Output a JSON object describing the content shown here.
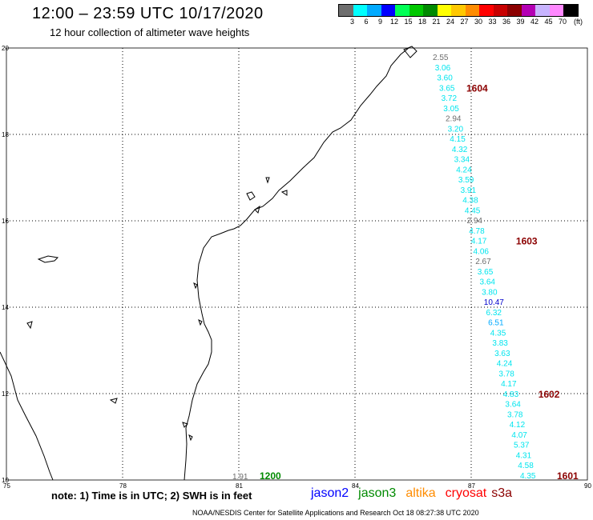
{
  "title": "12:00 – 23:59 UTC 10/17/2020",
  "subtitle": "12 hour collection of altimeter wave heights",
  "legend": {
    "unit": "(ft)",
    "swatches": [
      "#6e6e6e",
      "#00ffff",
      "#00aaff",
      "#0000ff",
      "#00ff55",
      "#00c800",
      "#008a00",
      "#ffff00",
      "#ffc800",
      "#ff8c00",
      "#ff0000",
      "#c80000",
      "#8b0000",
      "#b400b4",
      "#c8b4ff",
      "#ff88ff",
      "#000000"
    ],
    "labels": [
      "3",
      "6",
      "9",
      "12",
      "15",
      "18",
      "21",
      "24",
      "27",
      "30",
      "33",
      "36",
      "39",
      "42",
      "45",
      "70"
    ]
  },
  "axes": {
    "lat_labels": [
      "20",
      "18",
      "16",
      "14",
      "12",
      "10"
    ],
    "lon_labels": [
      "75",
      "78",
      "81",
      "84",
      "87",
      "90"
    ]
  },
  "wave_heights": [
    {
      "v": "2.55",
      "c": "#6e6e6e"
    },
    {
      "v": "3.06",
      "c": "#00e5ee"
    },
    {
      "v": "3.60",
      "c": "#00e5ee"
    },
    {
      "v": "3.65",
      "c": "#00e5ee"
    },
    {
      "v": "3.72",
      "c": "#00e5ee"
    },
    {
      "v": "3.05",
      "c": "#00e5ee"
    },
    {
      "v": "2.94",
      "c": "#6e6e6e"
    },
    {
      "v": "3.20",
      "c": "#00e5ee"
    },
    {
      "v": "4.15",
      "c": "#00e5ee"
    },
    {
      "v": "4.32",
      "c": "#00e5ee"
    },
    {
      "v": "3.34",
      "c": "#00e5ee"
    },
    {
      "v": "4.24",
      "c": "#00e5ee"
    },
    {
      "v": "3.59",
      "c": "#00e5ee"
    },
    {
      "v": "3.91",
      "c": "#00e5ee"
    },
    {
      "v": "4.38",
      "c": "#00e5ee"
    },
    {
      "v": "4.45",
      "c": "#00e5ee"
    },
    {
      "v": "2.94",
      "c": "#6e6e6e"
    },
    {
      "v": "4.78",
      "c": "#00e5ee"
    },
    {
      "v": "4.17",
      "c": "#00e5ee"
    },
    {
      "v": "4.06",
      "c": "#00e5ee"
    },
    {
      "v": "2.67",
      "c": "#6e6e6e"
    },
    {
      "v": "3.65",
      "c": "#00e5ee"
    },
    {
      "v": "3.64",
      "c": "#00e5ee"
    },
    {
      "v": "3.80",
      "c": "#00e5ee"
    },
    {
      "v": "10.47",
      "c": "#0000cc"
    },
    {
      "v": "6.32",
      "c": "#00e5ee"
    },
    {
      "v": "6.51",
      "c": "#00aaff"
    },
    {
      "v": "4.35",
      "c": "#00e5ee"
    },
    {
      "v": "3.83",
      "c": "#00e5ee"
    },
    {
      "v": "3.63",
      "c": "#00e5ee"
    },
    {
      "v": "4.24",
      "c": "#00e5ee"
    },
    {
      "v": "3.78",
      "c": "#00e5ee"
    },
    {
      "v": "4.17",
      "c": "#00e5ee"
    },
    {
      "v": "4.83",
      "c": "#00e5ee"
    },
    {
      "v": "3.64",
      "c": "#00e5ee"
    },
    {
      "v": "3.78",
      "c": "#00e5ee"
    },
    {
      "v": "4.12",
      "c": "#00e5ee"
    },
    {
      "v": "4.07",
      "c": "#00e5ee"
    },
    {
      "v": "5.37",
      "c": "#00e5ee"
    },
    {
      "v": "4.31",
      "c": "#00e5ee"
    },
    {
      "v": "4.58",
      "c": "#00e5ee"
    },
    {
      "v": "4.35",
      "c": "#00e5ee"
    }
  ],
  "track_times": [
    {
      "t": "1604",
      "c": "#8b0000"
    },
    {
      "t": "1603",
      "c": "#8b0000"
    },
    {
      "t": "1602",
      "c": "#8b0000"
    },
    {
      "t": "1601",
      "c": "#8b0000"
    }
  ],
  "jason3_point": {
    "v": "1.91",
    "t": "1200",
    "vc": "#6e6e6e",
    "tc": "#008a00"
  },
  "note": "note:  1) Time is in UTC;  2) SWH is in feet",
  "satellites": [
    {
      "name": "jason2",
      "color": "#0000ff"
    },
    {
      "name": "jason3",
      "color": "#008a00"
    },
    {
      "name": "altika",
      "color": "#ff8c00"
    },
    {
      "name": "cryosat",
      "color": "#ff0000"
    },
    {
      "name": "s3a",
      "color": "#8b0000"
    }
  ],
  "credit": "NOAA/NESDIS Center for Satellite Applications and Research    Oct 18 08:27:38 UTC 2020"
}
